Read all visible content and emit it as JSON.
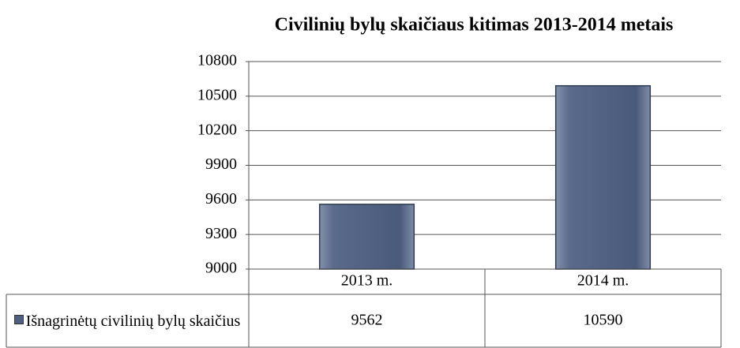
{
  "chart_data": {
    "type": "bar",
    "title": "Civilinių bylų skaičiaus kitimas 2013-2014 metais",
    "categories": [
      "2013 m.",
      "2014 m."
    ],
    "series": [
      {
        "name": "Išnagrinėtų civilinių bylų skaičius",
        "color": "#4f5f80",
        "values": [
          9562,
          10590
        ]
      }
    ],
    "ylim": [
      9000,
      10800
    ],
    "yticks": [
      9000,
      9300,
      9600,
      9900,
      10200,
      10500,
      10800
    ],
    "grid": true,
    "data_table": true
  }
}
